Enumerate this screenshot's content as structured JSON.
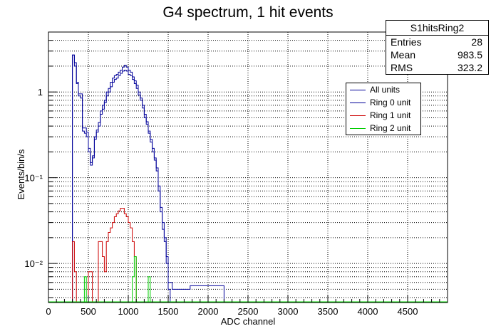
{
  "chart_data": {
    "type": "line",
    "title": "G4 spectrum, 1 hit events",
    "xlabel": "ADC channel",
    "ylabel": "Events/bin/s",
    "xlim": [
      0,
      5000
    ],
    "ylim": [
      0.0035,
      5
    ],
    "yscale": "log",
    "grid": true,
    "xticks": [
      0,
      500,
      1000,
      1500,
      2000,
      2500,
      3000,
      3500,
      4000,
      4500
    ],
    "xtick_labels": [
      "0",
      "500",
      "1000",
      "1500",
      "2000",
      "2500",
      "3000",
      "3500",
      "4000",
      "4500"
    ],
    "yticks": [
      0.01,
      0.1,
      1
    ],
    "ytick_labels": [
      "10⁻²",
      "10⁻¹",
      "1"
    ],
    "bin_width": 25,
    "legend_position": "top-right",
    "series": [
      {
        "name": "All units",
        "color": "#000099",
        "x0": 300,
        "values": [
          2.7,
          2.2,
          1.3,
          0.95,
          0.95,
          0.38,
          0.38,
          0.34,
          0.22,
          0.15,
          0.18,
          0.3,
          0.36,
          0.44,
          0.6,
          0.7,
          0.8,
          1.0,
          1.1,
          1.3,
          1.45,
          1.55,
          1.6,
          1.7,
          1.8,
          1.95,
          2.05,
          1.95,
          1.8,
          1.7,
          1.5,
          1.35,
          1.2,
          1.0,
          0.85,
          0.7,
          0.55,
          0.45,
          0.35,
          0.28,
          0.22,
          0.17,
          0.13,
          0.08,
          0.045,
          0.03,
          0.02,
          0.012,
          0.006,
          0.006,
          0.005,
          0.005,
          0.005,
          0.005,
          0.005,
          0.005,
          0.005,
          0.005,
          0.005,
          0.0055,
          0.0055,
          0.0055,
          0.0055,
          0.0055,
          0.0055,
          0.0055,
          0.0055,
          0.0055,
          0.0055,
          0.0055,
          0.0055,
          0.0055,
          0.0055,
          0.0055,
          0.0055,
          0.0055
        ]
      },
      {
        "name": "Ring 0 unit",
        "color": "#000099",
        "x0": 300,
        "values": [
          2.7,
          2.0,
          1.25,
          0.9,
          0.85,
          0.35,
          0.33,
          0.3,
          0.2,
          0.14,
          0.17,
          0.28,
          0.34,
          0.4,
          0.55,
          0.63,
          0.75,
          0.9,
          1.0,
          1.15,
          1.3,
          1.4,
          1.45,
          1.55,
          1.65,
          1.75,
          1.8,
          1.75,
          1.6,
          1.55,
          1.4,
          1.25,
          1.1,
          0.92,
          0.8,
          0.65,
          0.5,
          0.42,
          0.33,
          0.26,
          0.2,
          0.16,
          0.12,
          0.07,
          0.04,
          0.025,
          0.018,
          0.01,
          0.005
        ]
      },
      {
        "name": "Ring 1 unit",
        "color": "#cc0000",
        "x0": 300,
        "values": [
          0.018,
          0.008,
          0.0,
          0.0,
          0.0,
          0.0,
          0.0,
          0.0,
          0.008,
          0.008,
          0.0,
          0.0,
          0.0,
          0.018,
          0.018,
          0.012,
          0.008,
          0.018,
          0.023,
          0.026,
          0.03,
          0.035,
          0.038,
          0.041,
          0.044,
          0.044,
          0.038,
          0.035,
          0.03,
          0.026,
          0.018,
          0.012,
          0.0,
          0.0,
          0.0,
          0.0,
          0.0,
          0.0,
          0.0,
          0.0,
          0.0,
          0.0,
          0.0,
          0.0,
          0.0,
          0.0,
          0.0,
          0.0,
          0.0
        ]
      },
      {
        "name": "Ring 2 unit",
        "color": "#00cc00",
        "x0": 450,
        "values": [
          0.007,
          0.0,
          0.0,
          0.0,
          0.0,
          0.0,
          0.0,
          0.0,
          0.0,
          0.0,
          0.0,
          0.0,
          0.0,
          0.0,
          0.0,
          0.0,
          0.0,
          0.0,
          0.0,
          0.0,
          0.0,
          0.0,
          0.0,
          0.0,
          0.007,
          0.012,
          0.0,
          0.0,
          0.0,
          0.0,
          0.0,
          0.0,
          0.007,
          0.0
        ]
      }
    ]
  },
  "stats": {
    "title": "S1hitsRing2",
    "rows": [
      {
        "label": "Entries",
        "value": "28"
      },
      {
        "label": "Mean",
        "value": "983.5"
      },
      {
        "label": "RMS",
        "value": "323.2"
      }
    ]
  }
}
